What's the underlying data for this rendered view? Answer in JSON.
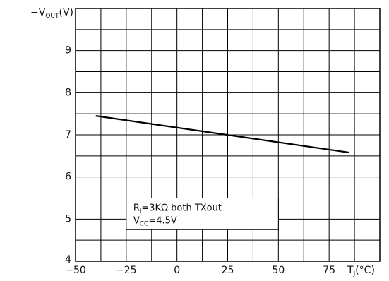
{
  "chart_data": {
    "type": "line",
    "title": "",
    "ylabel": "−Vₒᵤₜ(V)",
    "xlabel": "Tⱼ(°C)",
    "ylabel_parts": {
      "prefix": "−V",
      "sub": "OUT",
      "suffix": "(V)"
    },
    "xlabel_parts": {
      "prefix": "T",
      "sub": "J",
      "suffix": "(°C)"
    },
    "xlim": [
      -50,
      100
    ],
    "ylim": [
      4,
      10
    ],
    "x_ticks": [
      -50,
      -25,
      0,
      25,
      50,
      75
    ],
    "x_tick_labels": [
      "−50",
      "−25",
      "0",
      "25",
      "50",
      "75"
    ],
    "y_ticks": [
      4,
      5,
      6,
      7,
      8,
      9
    ],
    "y_tick_labels": [
      "4",
      "5",
      "6",
      "7",
      "8",
      "9"
    ],
    "grid": true,
    "grid_step_x": 12.5,
    "grid_step_y": 0.5,
    "series": [
      {
        "x": [
          -40,
          85
        ],
        "y": [
          7.45,
          6.58
        ]
      }
    ],
    "annotation": {
      "line1": {
        "prefix": "R",
        "sub": "l",
        "suffix": "=3KΩ  both  TXout"
      },
      "line2": {
        "prefix": "V",
        "sub": "CC",
        "suffix": "=4.5V"
      }
    },
    "colors": {
      "line": "#000000",
      "grid": "#000000",
      "background": "#ffffff"
    }
  }
}
